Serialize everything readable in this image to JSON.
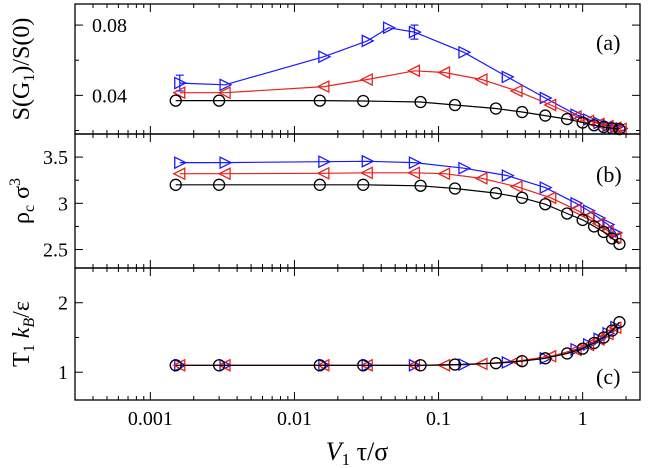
{
  "chart_data": {
    "type": "line",
    "xlabel": "V1 τ/σ",
    "xlabel_main": "V",
    "xlabel_sub": "1",
    "xlabel_rest": " τ/σ",
    "xscale": "log",
    "xlim": [
      0.0003,
      2.5
    ],
    "xticks": [
      0.001,
      0.01,
      0.1,
      1
    ],
    "xtick_labels": [
      "0.001",
      "0.01",
      "0.1",
      "1"
    ],
    "panels": [
      {
        "id": "a",
        "label": "(a)",
        "ylabel": "S(G1)/S(0)",
        "ylim": [
          0.018,
          0.092
        ],
        "yticks": [
          0.04,
          0.08
        ],
        "ytick_labels": [
          "0.04",
          "0.08"
        ],
        "series": [
          {
            "name": "blue",
            "color": "#1a1aff",
            "marker": "triangle-right",
            "x": [
              0.0016,
              0.0033,
              0.016,
              0.032,
              0.045,
              0.068,
              0.15,
              0.3,
              0.55,
              0.9,
              1.1,
              1.3,
              1.5,
              1.7,
              1.85
            ],
            "y": [
              0.047,
              0.046,
              0.062,
              0.071,
              0.0785,
              0.076,
              0.0645,
              0.0505,
              0.0385,
              0.029,
              0.0262,
              0.0243,
              0.0228,
              0.0218,
              0.0212
            ],
            "err": [
              0.0045,
              0,
              0,
              0,
              0,
              0.004,
              0,
              0,
              0,
              0,
              0,
              0,
              0,
              0,
              0
            ]
          },
          {
            "name": "red",
            "color": "#e8231c",
            "marker": "triangle-left",
            "x": [
              0.0016,
              0.0033,
              0.016,
              0.032,
              0.068,
              0.11,
              0.2,
              0.35,
              0.6,
              0.9,
              1.1,
              1.3,
              1.5,
              1.7,
              1.85
            ],
            "y": [
              0.0415,
              0.0415,
              0.045,
              0.049,
              0.054,
              0.053,
              0.049,
              0.0425,
              0.0345,
              0.028,
              0.0255,
              0.0238,
              0.0225,
              0.0216,
              0.021
            ],
            "err": []
          },
          {
            "name": "black",
            "color": "#000000",
            "marker": "circle",
            "x": [
              0.0015,
              0.003,
              0.015,
              0.03,
              0.075,
              0.13,
              0.25,
              0.38,
              0.55,
              0.78,
              1.0,
              1.2,
              1.4,
              1.6,
              1.8
            ],
            "y": [
              0.037,
              0.037,
              0.037,
              0.0368,
              0.0362,
              0.0345,
              0.0325,
              0.0305,
              0.0285,
              0.0265,
              0.0245,
              0.023,
              0.022,
              0.0212,
              0.0208
            ],
            "err": []
          }
        ]
      },
      {
        "id": "b",
        "label": "(b)",
        "ylabel": "ρc σ3",
        "ylim": [
          2.3,
          3.75
        ],
        "yticks": [
          2.5,
          3,
          3.5
        ],
        "ytick_labels": [
          "2.5",
          "3",
          "3.5"
        ],
        "series": [
          {
            "name": "blue",
            "color": "#1a1aff",
            "marker": "triangle-right",
            "x": [
              0.0016,
              0.0033,
              0.016,
              0.032,
              0.068,
              0.15,
              0.3,
              0.55,
              0.9,
              1.1,
              1.3,
              1.5,
              1.7
            ],
            "y": [
              3.44,
              3.44,
              3.45,
              3.455,
              3.44,
              3.38,
              3.3,
              3.17,
              3.0,
              2.92,
              2.84,
              2.77,
              2.68
            ],
            "err": []
          },
          {
            "name": "red",
            "color": "#e8231c",
            "marker": "triangle-left",
            "x": [
              0.0016,
              0.0033,
              0.016,
              0.032,
              0.068,
              0.11,
              0.2,
              0.35,
              0.6,
              0.9,
              1.1,
              1.3,
              1.5,
              1.7
            ],
            "y": [
              3.32,
              3.32,
              3.325,
              3.33,
              3.33,
              3.32,
              3.27,
              3.18,
              3.06,
              2.93,
              2.86,
              2.78,
              2.7,
              2.63
            ],
            "err": []
          },
          {
            "name": "black",
            "color": "#000000",
            "marker": "circle",
            "x": [
              0.0015,
              0.003,
              0.015,
              0.03,
              0.075,
              0.13,
              0.25,
              0.38,
              0.55,
              0.78,
              1.0,
              1.2,
              1.4,
              1.6,
              1.8
            ],
            "y": [
              3.2,
              3.2,
              3.2,
              3.2,
              3.19,
              3.16,
              3.11,
              3.06,
              2.99,
              2.89,
              2.82,
              2.75,
              2.69,
              2.62,
              2.56
            ],
            "err": []
          }
        ]
      },
      {
        "id": "c",
        "label": "(c)",
        "ylabel": "T1 kB/ε",
        "ylim": [
          0.6,
          2.5
        ],
        "yticks": [
          1,
          2
        ],
        "ytick_labels": [
          "1",
          "2"
        ],
        "series": [
          {
            "name": "blue",
            "color": "#1a1aff",
            "marker": "triangle-right",
            "x": [
              0.0016,
              0.0033,
              0.016,
              0.032,
              0.068,
              0.15,
              0.3,
              0.55,
              0.9,
              1.1,
              1.3,
              1.5,
              1.7
            ],
            "y": [
              1.1,
              1.1,
              1.1,
              1.1,
              1.1,
              1.11,
              1.14,
              1.2,
              1.33,
              1.4,
              1.48,
              1.56,
              1.65
            ],
            "err": []
          },
          {
            "name": "red",
            "color": "#e8231c",
            "marker": "triangle-left",
            "x": [
              0.0016,
              0.0033,
              0.016,
              0.032,
              0.068,
              0.11,
              0.2,
              0.35,
              0.6,
              0.9,
              1.1,
              1.3,
              1.5,
              1.7
            ],
            "y": [
              1.1,
              1.1,
              1.1,
              1.1,
              1.1,
              1.1,
              1.12,
              1.16,
              1.23,
              1.32,
              1.39,
              1.47,
              1.55,
              1.64
            ],
            "err": []
          },
          {
            "name": "black",
            "color": "#000000",
            "marker": "circle",
            "x": [
              0.0015,
              0.003,
              0.015,
              0.03,
              0.075,
              0.13,
              0.25,
              0.38,
              0.55,
              0.78,
              1.0,
              1.2,
              1.4,
              1.6,
              1.8
            ],
            "y": [
              1.1,
              1.1,
              1.1,
              1.1,
              1.1,
              1.11,
              1.13,
              1.16,
              1.2,
              1.27,
              1.34,
              1.42,
              1.5,
              1.6,
              1.72
            ],
            "err": []
          }
        ]
      }
    ]
  }
}
